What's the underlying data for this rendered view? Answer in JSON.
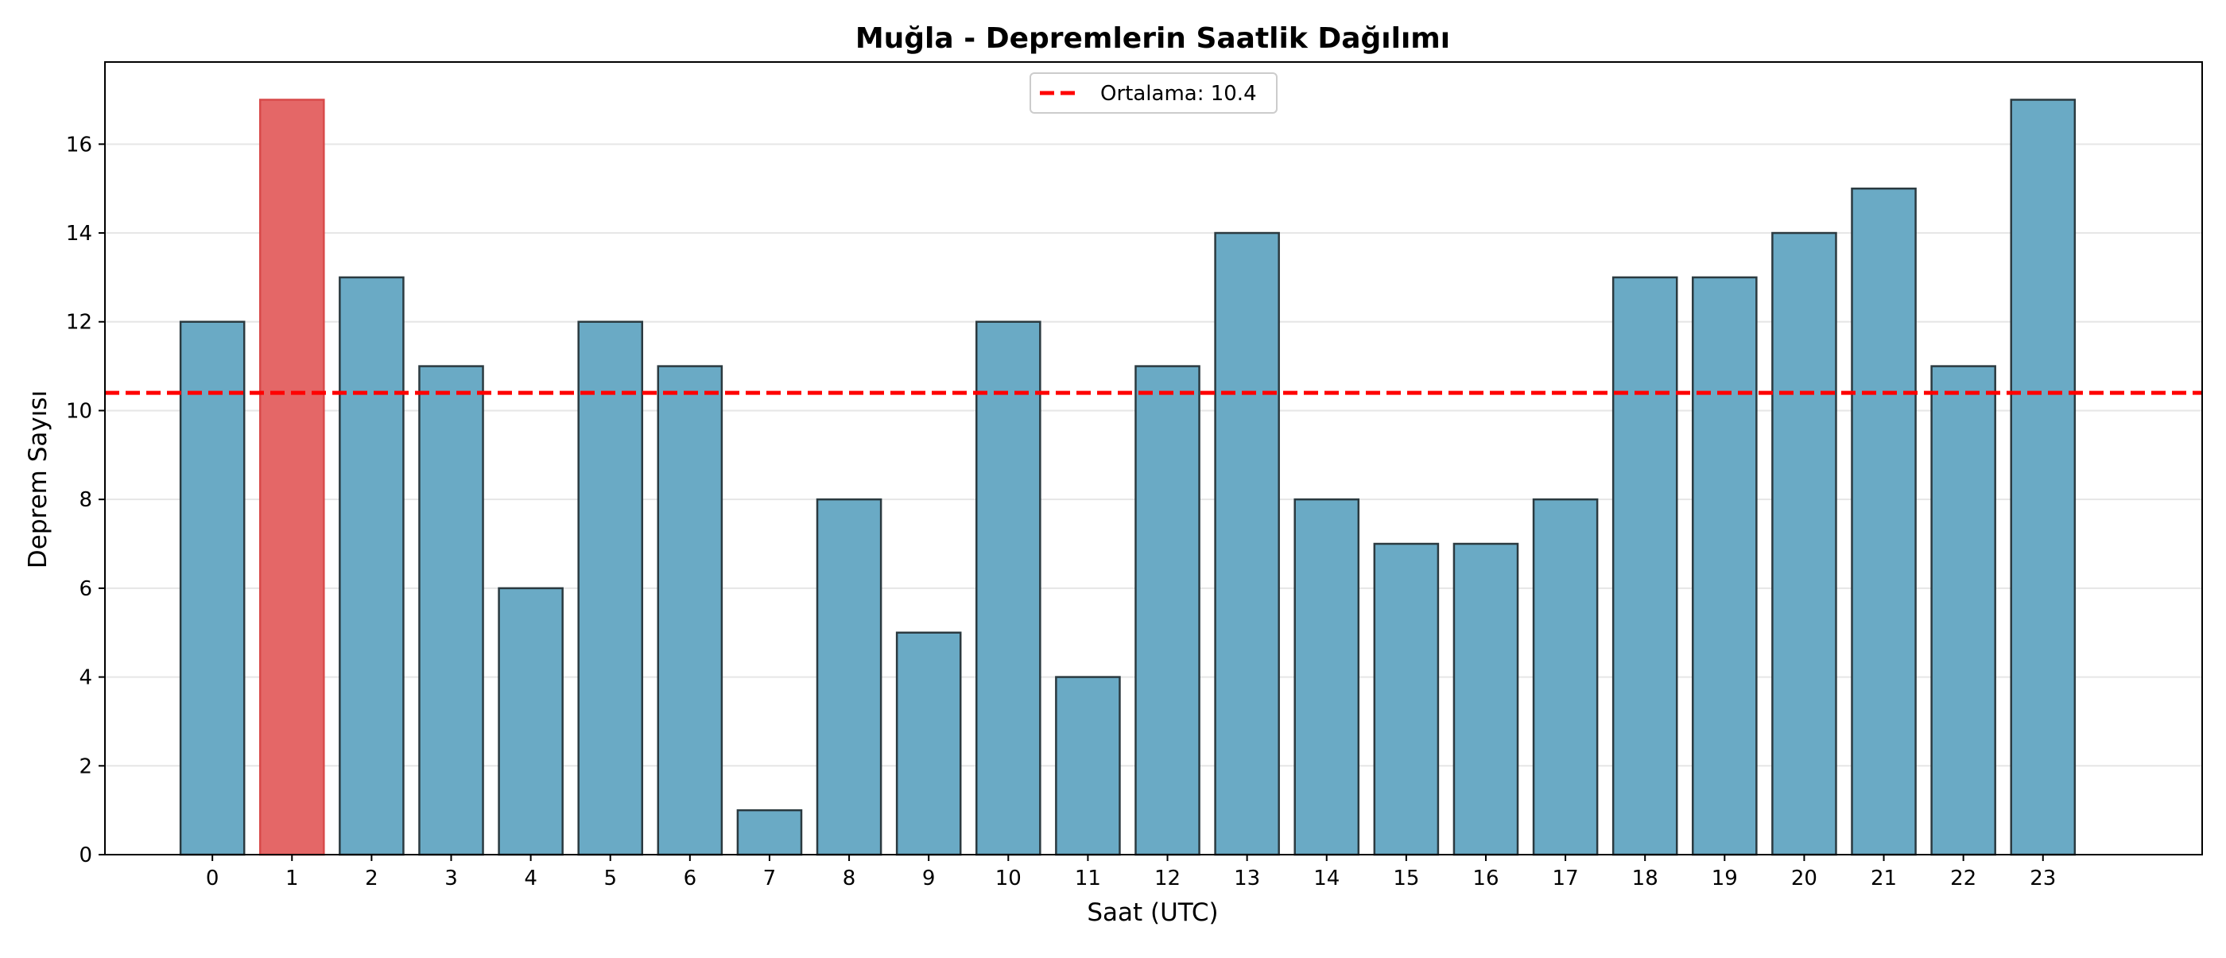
{
  "chart_data": {
    "type": "bar",
    "title": "Muğla - Depremlerin Saatlik Dağılımı",
    "xlabel": "Saat (UTC)",
    "ylabel": "Deprem Sayısı",
    "categories": [
      "0",
      "1",
      "2",
      "3",
      "4",
      "5",
      "6",
      "7",
      "8",
      "9",
      "10",
      "11",
      "12",
      "13",
      "14",
      "15",
      "16",
      "17",
      "18",
      "19",
      "20",
      "21",
      "22",
      "23"
    ],
    "values": [
      12,
      17,
      13,
      11,
      6,
      12,
      11,
      1,
      8,
      5,
      12,
      4,
      11,
      14,
      8,
      7,
      7,
      8,
      13,
      13,
      14,
      15,
      11,
      17
    ],
    "highlight_index": 1,
    "ylim": [
      0,
      17.85
    ],
    "yticks": [
      0,
      2,
      4,
      6,
      8,
      10,
      12,
      14,
      16
    ],
    "grid": "y",
    "mean_line": {
      "value": 10.4,
      "label": "Ortalama: 10.4",
      "color": "#ff0000",
      "style": "dashed"
    },
    "legend": {
      "placement": "top-center"
    },
    "colors": {
      "bar": "#6aaac5",
      "highlight": "#e46767",
      "edge": "#2b3a40"
    }
  }
}
